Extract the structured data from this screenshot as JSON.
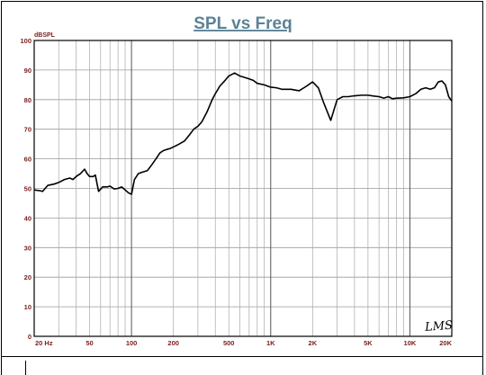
{
  "chart_data": {
    "type": "line",
    "title": "SPL vs Freq",
    "ylabel": "dBSPL",
    "xscale": "log",
    "xlim": [
      20,
      20000
    ],
    "ylim": [
      0,
      100
    ],
    "grid": true,
    "yticks": [
      0,
      10,
      20,
      30,
      40,
      50,
      60,
      70,
      80,
      90,
      100
    ],
    "xtick_labels": [
      {
        "value": 20,
        "label": "20 Hz"
      },
      {
        "value": 50,
        "label": "50"
      },
      {
        "value": 100,
        "label": "100"
      },
      {
        "value": 200,
        "label": "200"
      },
      {
        "value": 500,
        "label": "500"
      },
      {
        "value": 1000,
        "label": "1K"
      },
      {
        "value": 2000,
        "label": "2K"
      },
      {
        "value": 5000,
        "label": "5K"
      },
      {
        "value": 10000,
        "label": "10K"
      },
      {
        "value": 20000,
        "label": "20K"
      }
    ],
    "series": [
      {
        "color": "#000000",
        "x": [
          20,
          22,
          23,
          25,
          28,
          30,
          33,
          36,
          38,
          40,
          43,
          46,
          48,
          50,
          53,
          55,
          58,
          62,
          67,
          70,
          75,
          80,
          85,
          90,
          95,
          100,
          105,
          112,
          120,
          130,
          140,
          150,
          160,
          170,
          180,
          190,
          200,
          210,
          220,
          240,
          260,
          280,
          300,
          320,
          350,
          380,
          400,
          430,
          470,
          500,
          550,
          600,
          650,
          700,
          750,
          800,
          900,
          1000,
          1100,
          1200,
          1400,
          1600,
          1800,
          2000,
          2200,
          2400,
          2700,
          3000,
          3300,
          3600,
          4000,
          4500,
          5000,
          5500,
          6000,
          6500,
          7000,
          7500,
          8000,
          9000,
          10000,
          11000,
          12000,
          13000,
          14000,
          15000,
          16000,
          17000,
          18000,
          19000,
          20000
        ],
        "y": [
          49.5,
          49.2,
          49,
          51,
          51.5,
          52,
          53,
          53.5,
          53,
          54,
          55,
          56.5,
          55,
          54,
          54,
          54.5,
          49,
          50.5,
          50.5,
          50.8,
          49.8,
          50,
          50.5,
          49.5,
          48.5,
          48,
          53,
          55,
          55.5,
          56,
          58,
          60,
          62,
          62.8,
          63.2,
          63.5,
          64,
          64.5,
          65,
          66,
          68,
          70,
          71,
          72.5,
          76,
          80,
          82,
          84.5,
          86.5,
          88,
          89,
          88,
          87.5,
          87,
          86.5,
          85.5,
          85,
          84.2,
          84,
          83.5,
          83.5,
          83,
          84.5,
          86,
          84,
          79,
          73,
          80,
          81,
          81,
          81.3,
          81.5,
          81.5,
          81.2,
          81,
          80.5,
          81,
          80.3,
          80.5,
          80.6,
          81,
          82,
          83.5,
          84,
          83.5,
          84,
          86,
          86.3,
          85,
          81,
          79.5
        ]
      }
    ],
    "annotations": [
      {
        "text": "LMS"
      }
    ]
  }
}
